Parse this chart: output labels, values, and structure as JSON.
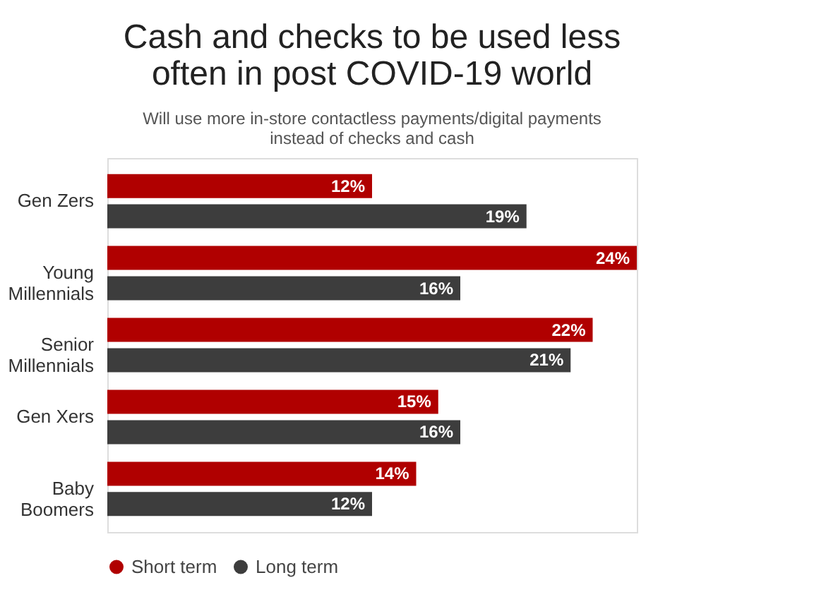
{
  "chart_data": {
    "type": "bar",
    "orientation": "horizontal",
    "title": "Cash and checks to be used less often in post COVID-19 world",
    "subtitle": "Will use more in-store contactless payments/digital payments instead of checks and cash",
    "categories": [
      "Gen Zers",
      "Young Millennials",
      "Senior Millennials",
      "Gen Xers",
      "Baby Boomers"
    ],
    "series": [
      {
        "name": "Short term",
        "color": "#b00000",
        "values": [
          12,
          24,
          22,
          15,
          14
        ],
        "value_labels": [
          "12%",
          "24%",
          "22%",
          "15%",
          "14%"
        ]
      },
      {
        "name": "Long term",
        "color": "#3d3d3d",
        "values": [
          19,
          16,
          21,
          16,
          12
        ],
        "value_labels": [
          "19%",
          "16%",
          "21%",
          "16%",
          "12%"
        ]
      }
    ],
    "legend": "bottom"
  }
}
